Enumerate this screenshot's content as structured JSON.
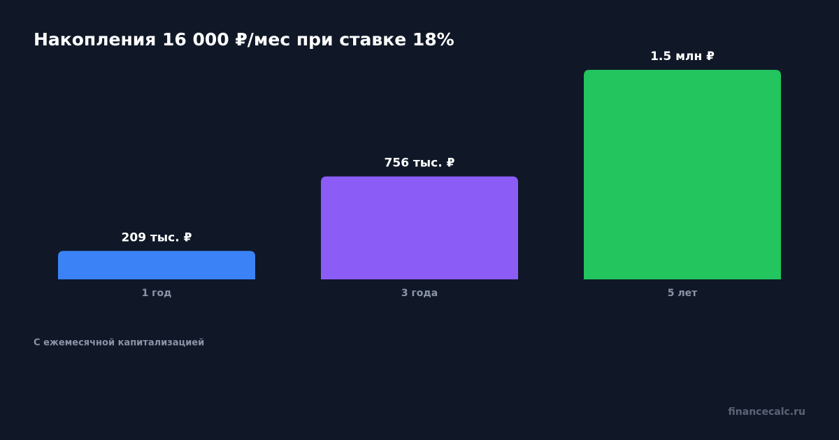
{
  "chart_data": {
    "type": "bar",
    "title": "Накопления 16 000 ₽/мес при ставке 18%",
    "categories": [
      "1 год",
      "3 года",
      "5 лет"
    ],
    "values": [
      209000,
      756000,
      1539000
    ],
    "value_labels": [
      "209 тыс. ₽",
      "756 тыс. ₽",
      "1.5 млн ₽"
    ],
    "colors": [
      "#3b82f6",
      "#8b5cf6",
      "#22c55e"
    ],
    "note": "С ежемесячной капитализацией",
    "watermark": "financecalc.ru"
  }
}
